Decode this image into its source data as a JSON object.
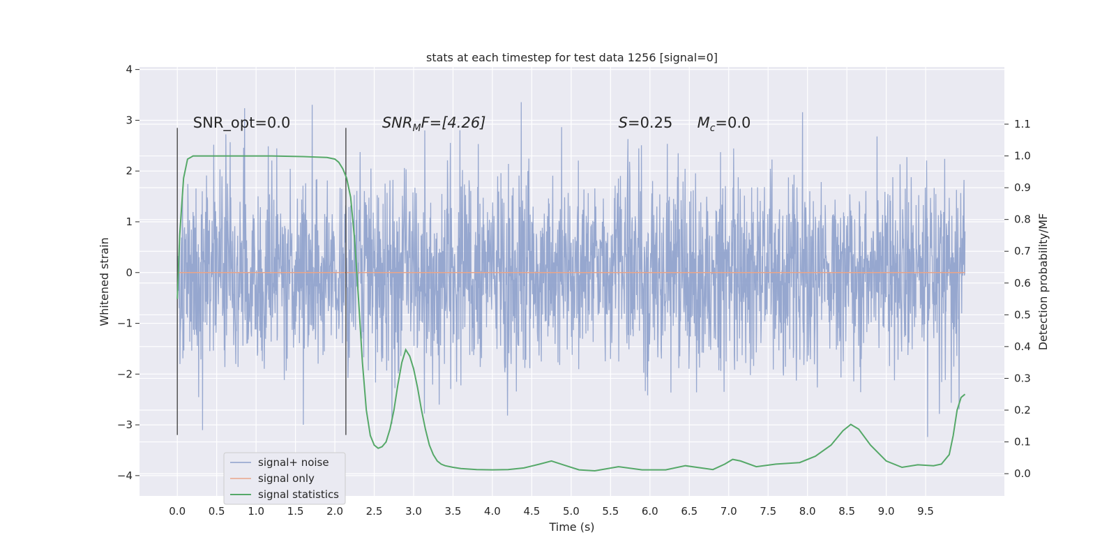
{
  "chart_data": {
    "type": "line",
    "title": "stats at each timestep for test data 1256 [signal=0]",
    "xlabel": "Time (s)",
    "ylabel": "Whitened strain",
    "y2label": "Detection probability/MF",
    "xlim": [
      -0.48,
      10.5
    ],
    "ylim": [
      -4.4,
      4.05
    ],
    "y2lim": [
      -0.07,
      1.28
    ],
    "xticks": [
      "0.0",
      "0.5",
      "1.0",
      "1.5",
      "2.0",
      "2.5",
      "3.0",
      "3.5",
      "4.0",
      "4.5",
      "5.0",
      "5.5",
      "6.0",
      "6.5",
      "7.0",
      "7.5",
      "8.0",
      "8.5",
      "9.0",
      "9.5"
    ],
    "yticks": [
      "4",
      "3",
      "2",
      "1",
      "0",
      "−1",
      "−2",
      "−3",
      "−4"
    ],
    "y2ticks": [
      "1.1",
      "1.0",
      "0.9",
      "0.8",
      "0.7",
      "0.6",
      "0.5",
      "0.4",
      "0.3",
      "0.2",
      "0.1",
      "0.0"
    ],
    "grid": true,
    "legend_position": "lower-left",
    "series": [
      {
        "name": "signal+ noise",
        "color": "#8da0cb",
        "style": "dense noise trace, amplitude ~1.6 sigma, peaks to about ±3.6",
        "x_range": [
          0,
          10
        ],
        "sigma": 0.95
      },
      {
        "name": "signal only",
        "color": "#e9a58a",
        "x": [
          0,
          10
        ],
        "y": [
          0,
          0
        ]
      },
      {
        "name": "signal statistics",
        "color": "#55a868",
        "axis": "right",
        "x": [
          0.0,
          0.03,
          0.08,
          0.13,
          0.2,
          0.4,
          0.8,
          1.2,
          1.6,
          1.9,
          2.0,
          2.05,
          2.1,
          2.15,
          2.2,
          2.25,
          2.3,
          2.35,
          2.4,
          2.45,
          2.5,
          2.55,
          2.6,
          2.65,
          2.7,
          2.75,
          2.8,
          2.85,
          2.9,
          2.95,
          3.0,
          3.05,
          3.1,
          3.15,
          3.2,
          3.25,
          3.3,
          3.35,
          3.4,
          3.5,
          3.6,
          3.8,
          4.0,
          4.2,
          4.4,
          4.6,
          4.75,
          4.9,
          5.1,
          5.3,
          5.6,
          5.9,
          6.2,
          6.45,
          6.8,
          6.95,
          7.05,
          7.15,
          7.35,
          7.6,
          7.9,
          8.1,
          8.3,
          8.45,
          8.55,
          8.65,
          8.8,
          9.0,
          9.2,
          9.4,
          9.6,
          9.7,
          9.8,
          9.85,
          9.9,
          9.95,
          10.0
        ],
        "y": [
          0.55,
          0.75,
          0.93,
          0.99,
          1.0,
          1.0,
          1.0,
          1.0,
          0.998,
          0.995,
          0.99,
          0.98,
          0.96,
          0.93,
          0.87,
          0.74,
          0.55,
          0.35,
          0.2,
          0.12,
          0.09,
          0.08,
          0.085,
          0.1,
          0.14,
          0.2,
          0.28,
          0.35,
          0.39,
          0.37,
          0.33,
          0.27,
          0.2,
          0.14,
          0.09,
          0.06,
          0.04,
          0.03,
          0.025,
          0.02,
          0.016,
          0.013,
          0.012,
          0.013,
          0.018,
          0.03,
          0.04,
          0.028,
          0.012,
          0.009,
          0.022,
          0.012,
          0.012,
          0.025,
          0.013,
          0.03,
          0.045,
          0.04,
          0.022,
          0.03,
          0.035,
          0.055,
          0.09,
          0.135,
          0.155,
          0.14,
          0.09,
          0.04,
          0.02,
          0.028,
          0.025,
          0.03,
          0.06,
          0.12,
          0.2,
          0.24,
          0.25
        ]
      }
    ],
    "vlines": [
      0.0,
      2.14
    ],
    "annotations": [
      {
        "text": "SNR_opt=0.0",
        "x": 0.2,
        "y": 2.95
      },
      {
        "text": "SNR",
        "sub": "M",
        "tail": "F=[4.26]",
        "italic": true,
        "x": 2.6,
        "y": 2.95
      },
      {
        "text": "S",
        "tail": "=0.25",
        "italic": true,
        "x": 5.6,
        "y": 2.95
      },
      {
        "text": "M",
        "sub": "c",
        "tail": "=0.0",
        "italic": true,
        "x": 6.6,
        "y": 2.95
      }
    ]
  }
}
